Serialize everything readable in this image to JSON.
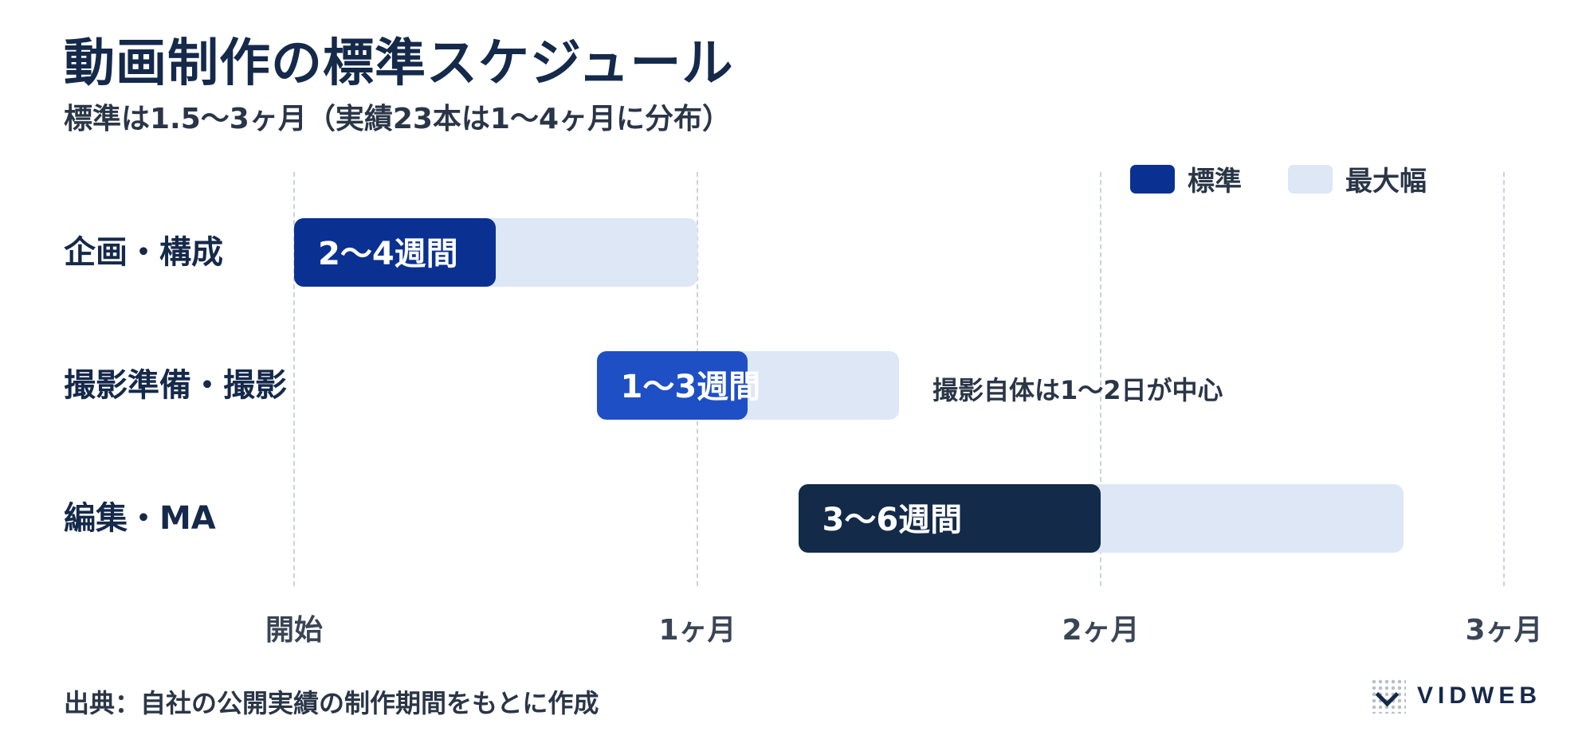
{
  "title": "動画制作の標準スケジュール",
  "subtitle": "標準は1.5〜3ヶ月（実績23本は1〜4ヶ月に分布）",
  "legend": {
    "standard_label": "標準",
    "range_label": "最大幅",
    "standard_color": "#0a3192",
    "range_color": "#dde7f5"
  },
  "chart_data": {
    "type": "bar",
    "subtype": "gantt",
    "x_unit": "months",
    "xlim": [
      0,
      3
    ],
    "x_ticks": [
      {
        "value": 0,
        "label": "開始"
      },
      {
        "value": 1,
        "label": "1ヶ月"
      },
      {
        "value": 2,
        "label": "2ヶ月"
      },
      {
        "value": 3,
        "label": "3ヶ月"
      }
    ],
    "grid": true,
    "legend_position": "top-right",
    "series": [
      {
        "name": "標準",
        "color": "#0a3192"
      },
      {
        "name": "最大幅",
        "color": "#dde7f5"
      }
    ],
    "tasks": [
      {
        "name": "企画・構成",
        "standard": [
          0,
          0.5
        ],
        "range": [
          0,
          1
        ],
        "label": "2〜4週間",
        "color": "#0a3192",
        "note": ""
      },
      {
        "name": "撮影準備・撮影",
        "standard": [
          0.75,
          1.125
        ],
        "range": [
          0.75,
          1.5
        ],
        "label": "1〜3週間",
        "color": "#1f4fc4",
        "note": "撮影自体は1〜2日が中心"
      },
      {
        "name": "編集・MA",
        "standard": [
          1.25,
          2
        ],
        "range": [
          1.25,
          2.75
        ],
        "label": "3〜6週間",
        "color": "#132a48",
        "note": ""
      }
    ]
  },
  "source": "出典：自社の公開実績の制作期間をもとに作成",
  "brand": {
    "name": "VIDWEB"
  }
}
